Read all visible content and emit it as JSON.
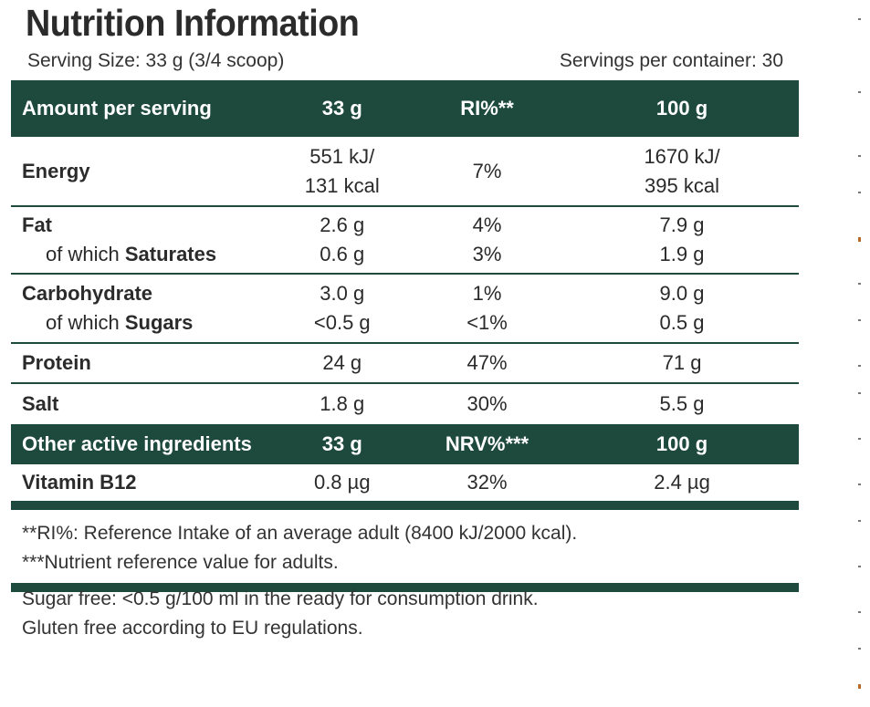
{
  "title": "Nutrition Information",
  "serving_size": "Serving Size: 33 g (3/4 scoop)",
  "servings_per_container": "Servings per container: 30",
  "header1": {
    "col1": "Amount per serving",
    "col2": "33 g",
    "col3": "RI%**",
    "col4": "100 g"
  },
  "rows": {
    "energy": {
      "label": "Energy",
      "serving_l1": "551 kJ/",
      "serving_l2": "131 kcal",
      "ri": "7%",
      "per100_l1": "1670 kJ/",
      "per100_l2": "395 kcal"
    },
    "fat": {
      "label": "Fat",
      "serving": "2.6 g",
      "ri": "4%",
      "per100": "7.9 g"
    },
    "saturates": {
      "prefix": "of which ",
      "label": "Saturates",
      "serving": "0.6 g",
      "ri": "3%",
      "per100": "1.9 g"
    },
    "carbohydrate": {
      "label": "Carbohydrate",
      "serving": "3.0 g",
      "ri": "1%",
      "per100": "9.0 g"
    },
    "sugars": {
      "prefix": "of which ",
      "label": "Sugars",
      "serving": "<0.5 g",
      "ri": "<1%",
      "per100": "0.5 g"
    },
    "protein": {
      "label": "Protein",
      "serving": "24 g",
      "ri": "47%",
      "per100": "71 g"
    },
    "salt": {
      "label": "Salt",
      "serving": "1.8 g",
      "ri": "30%",
      "per100": "5.5 g"
    }
  },
  "header2": {
    "col1": "Other active ingredients",
    "col2": "33 g",
    "col3": "NRV%***",
    "col4": "100 g"
  },
  "vitamin_b12": {
    "label": "Vitamin B12",
    "serving": "0.8 µg",
    "nrv": "32%",
    "per100": "2.4 µg"
  },
  "footnotes": {
    "ri_note": "**RI%: Reference Intake of an average adult (8400 kJ/2000 kcal).",
    "nrv_note": "***Nutrient reference value for adults."
  },
  "extra": {
    "sugar_free": "Sugar free: <0.5 g/100 ml in the ready for consumption drink.",
    "gluten_free": "Gluten free according to EU regulations."
  },
  "colors": {
    "header_bg": "#1d4a3c",
    "header_text": "#ffffff"
  }
}
